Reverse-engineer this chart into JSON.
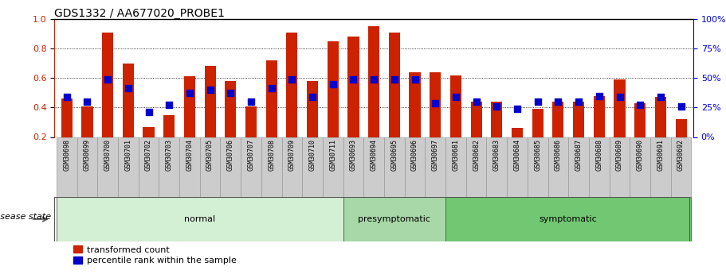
{
  "title": "GDS1332 / AA677020_PROBE1",
  "samples": [
    "GSM30698",
    "GSM30699",
    "GSM30700",
    "GSM30701",
    "GSM30702",
    "GSM30703",
    "GSM30704",
    "GSM30705",
    "GSM30706",
    "GSM30707",
    "GSM30708",
    "GSM30709",
    "GSM30710",
    "GSM30711",
    "GSM30693",
    "GSM30694",
    "GSM30695",
    "GSM30696",
    "GSM30697",
    "GSM30681",
    "GSM30682",
    "GSM30683",
    "GSM30684",
    "GSM30685",
    "GSM30686",
    "GSM30687",
    "GSM30688",
    "GSM30689",
    "GSM30690",
    "GSM30691",
    "GSM30692"
  ],
  "red_values": [
    0.46,
    0.41,
    0.91,
    0.7,
    0.27,
    0.35,
    0.61,
    0.68,
    0.58,
    0.41,
    0.72,
    0.91,
    0.58,
    0.85,
    0.88,
    0.95,
    0.91,
    0.64,
    0.64,
    0.62,
    0.44,
    0.44,
    0.26,
    0.39,
    0.44,
    0.44,
    0.48,
    0.59,
    0.43,
    0.47,
    0.32
  ],
  "blue_values": [
    0.47,
    0.44,
    0.59,
    0.53,
    0.37,
    0.42,
    0.5,
    0.52,
    0.5,
    0.44,
    0.53,
    0.59,
    0.47,
    0.56,
    0.59,
    0.59,
    0.59,
    0.59,
    0.43,
    0.47,
    0.44,
    0.41,
    0.39,
    0.44,
    0.44,
    0.44,
    0.48,
    0.47,
    0.42,
    0.47,
    0.41
  ],
  "groups": [
    {
      "label": "normal",
      "start": 0,
      "end": 14,
      "color": "#d4f0d4"
    },
    {
      "label": "presymptomatic",
      "start": 14,
      "end": 19,
      "color": "#a8d8a8"
    },
    {
      "label": "symptomatic",
      "start": 19,
      "end": 31,
      "color": "#72c872"
    }
  ],
  "bar_color": "#cc2200",
  "blue_color": "#0000cc",
  "ylim_left": [
    0.2,
    1.0
  ],
  "ylim_right": [
    0,
    100
  ],
  "yticks_left": [
    0.2,
    0.4,
    0.6,
    0.8,
    1.0
  ],
  "yticks_right": [
    0,
    25,
    50,
    75,
    100
  ],
  "ylabel_left_color": "#cc2200",
  "ylabel_right_color": "#0000cc",
  "bar_width": 0.55,
  "blue_square_size": 35,
  "legend_labels": [
    "transformed count",
    "percentile rank within the sample"
  ],
  "disease_state_label": "disease state",
  "background_color": "#ffffff",
  "plot_bg_color": "#ffffff",
  "cell_bg_color": "#cccccc",
  "cell_edge_color": "#999999"
}
